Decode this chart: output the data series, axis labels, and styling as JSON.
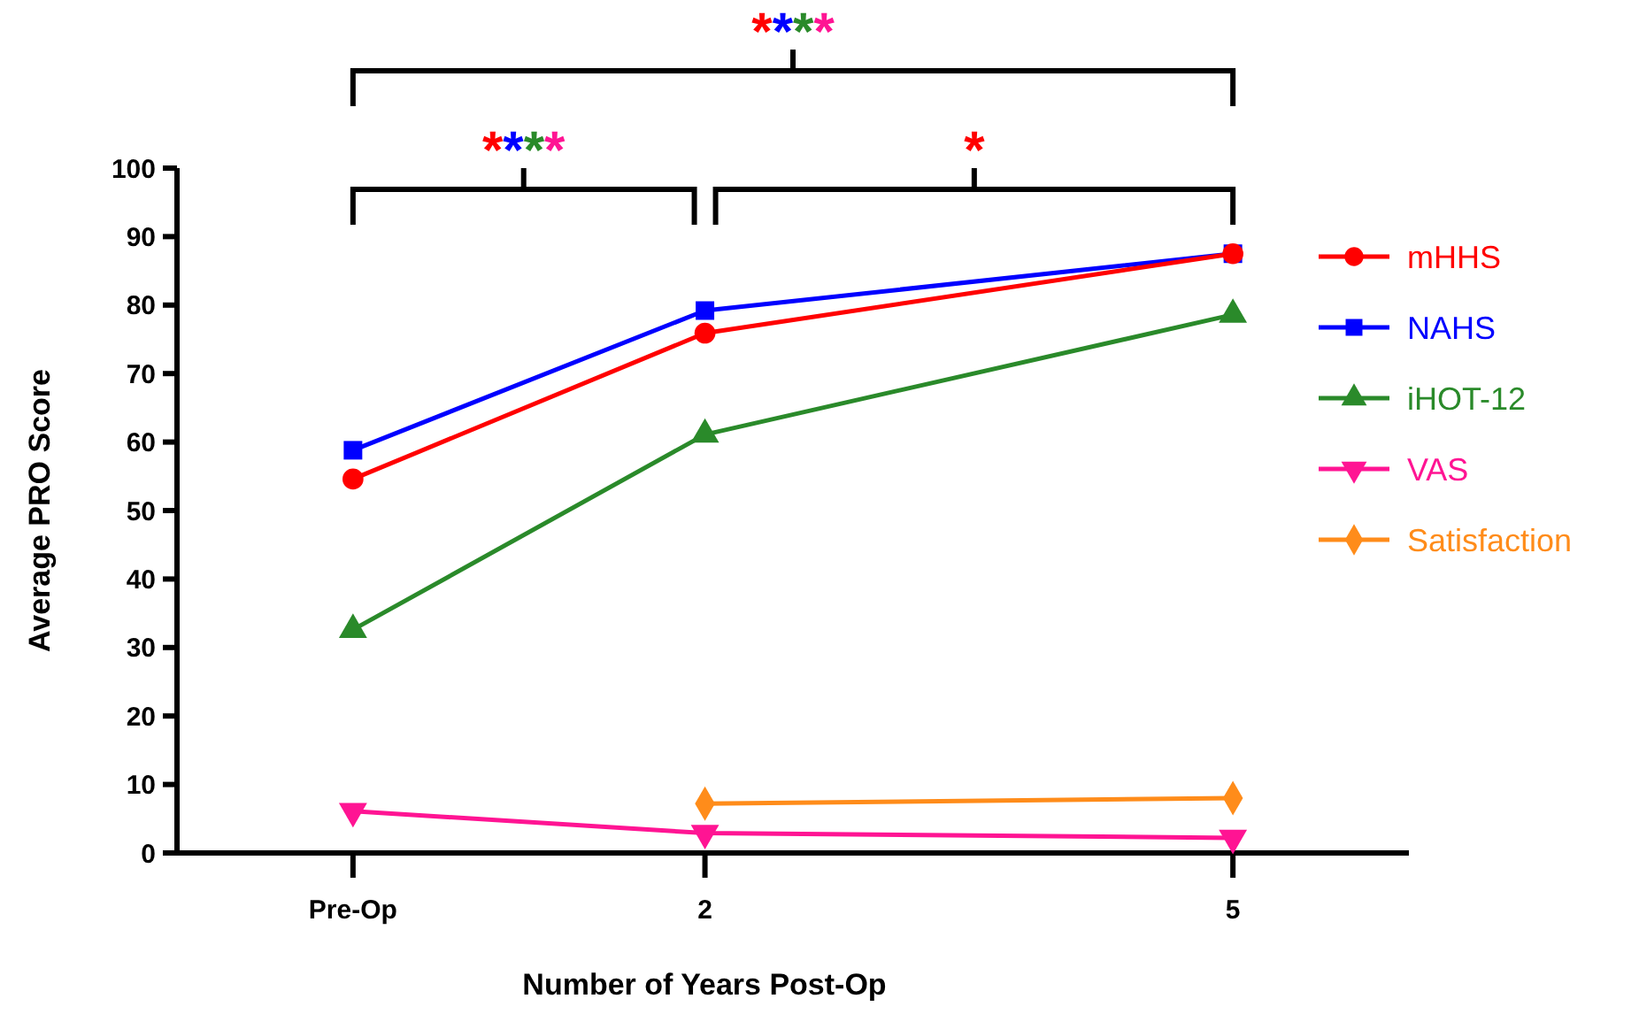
{
  "chart_data": {
    "type": "line",
    "xlabel": "Number of Years Post-Op",
    "ylabel": "Average PRO Score",
    "x": [
      0,
      2,
      5
    ],
    "xlim": [
      -1,
      6
    ],
    "xticks": [
      {
        "value": 0,
        "label": "Pre-Op"
      },
      2,
      5
    ],
    "ylim": [
      0,
      100
    ],
    "yticks": [
      0,
      10,
      20,
      30,
      40,
      50,
      60,
      70,
      80,
      90,
      100
    ],
    "series": [
      {
        "name": "mHHS",
        "color": "#ff0000",
        "marker": "circle",
        "values": [
          54.6,
          75.9,
          87.5
        ]
      },
      {
        "name": "NAHS",
        "color": "#0000ff",
        "marker": "square",
        "values": [
          58.8,
          79.2,
          87.5
        ]
      },
      {
        "name": "iHOT-12",
        "color": "#2a8a2a",
        "marker": "triangle",
        "values": [
          32.6,
          61.1,
          78.6
        ]
      },
      {
        "name": "VAS",
        "color": "#ff1493",
        "marker": "triangle-down",
        "values": [
          6.1,
          2.9,
          2.2
        ]
      },
      {
        "name": "Satisfaction",
        "color": "#ff8c1a",
        "marker": "diamond",
        "values": [
          null,
          7.2,
          8.0
        ]
      }
    ],
    "annotations": [
      "****",
      "****",
      "*"
    ],
    "legend": "right",
    "grid": false
  }
}
